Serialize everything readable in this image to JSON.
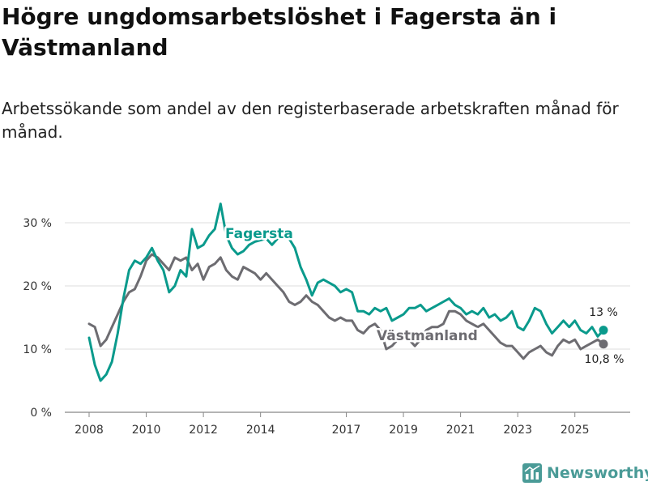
{
  "header": {
    "title": "Högre ungdomsarbetslöshet i Fagersta än i Västmanland",
    "subtitle": "Arbetssökande som andel av den registerbaserade arbetskraften månad för månad."
  },
  "brand": {
    "name": "Newsworthy",
    "color": "#4a9b97"
  },
  "colors": {
    "fagersta": "#0a9a8c",
    "vastmanland": "#6d6c71",
    "grid": "#dcdcdc",
    "axis": "#888888"
  },
  "chart_data": {
    "type": "line",
    "title": "Högre ungdomsarbetslöshet i Fagersta än i Västmanland",
    "xlabel": "",
    "ylabel": "",
    "xlim": [
      2008,
      2026.5
    ],
    "ylim": [
      0,
      30
    ],
    "x_ticks": [
      {
        "value": 2008,
        "label": "2008"
      },
      {
        "value": 2010,
        "label": "2010"
      },
      {
        "value": 2012,
        "label": "2012"
      },
      {
        "value": 2014,
        "label": "2014"
      },
      {
        "value": 2017,
        "label": "2017"
      },
      {
        "value": 2019,
        "label": "2019"
      },
      {
        "value": 2021,
        "label": "2021"
      },
      {
        "value": 2023,
        "label": "2023"
      },
      {
        "value": 2025,
        "label": "2025"
      }
    ],
    "y_ticks": [
      {
        "value": 0,
        "label": "0 %"
      },
      {
        "value": 10,
        "label": "10 %"
      },
      {
        "value": 20,
        "label": "20 %"
      },
      {
        "value": 30,
        "label": "30 %"
      }
    ],
    "grid": true,
    "series": [
      {
        "name": "Fagersta",
        "color": "#0a9a8c",
        "label": "Fagersta",
        "end_label": "13 %",
        "points": [
          [
            2008.0,
            11.8
          ],
          [
            2008.2,
            7.5
          ],
          [
            2008.4,
            5.0
          ],
          [
            2008.6,
            6.0
          ],
          [
            2008.8,
            8.0
          ],
          [
            2009.0,
            12.5
          ],
          [
            2009.2,
            18.0
          ],
          [
            2009.4,
            22.5
          ],
          [
            2009.6,
            24.0
          ],
          [
            2009.8,
            23.5
          ],
          [
            2010.0,
            24.5
          ],
          [
            2010.2,
            26.0
          ],
          [
            2010.4,
            24.0
          ],
          [
            2010.6,
            22.5
          ],
          [
            2010.8,
            19.0
          ],
          [
            2011.0,
            20.0
          ],
          [
            2011.2,
            22.5
          ],
          [
            2011.4,
            21.5
          ],
          [
            2011.6,
            29.0
          ],
          [
            2011.8,
            26.0
          ],
          [
            2012.0,
            26.5
          ],
          [
            2012.2,
            28.0
          ],
          [
            2012.4,
            29.0
          ],
          [
            2012.6,
            33.0
          ],
          [
            2012.8,
            28.0
          ],
          [
            2013.0,
            26.0
          ],
          [
            2013.2,
            25.0
          ],
          [
            2013.4,
            25.5
          ],
          [
            2013.6,
            26.5
          ],
          [
            2013.8,
            27.0
          ],
          [
            2014.2,
            27.5
          ],
          [
            2014.4,
            26.5
          ],
          [
            2014.6,
            27.5
          ],
          [
            2015.0,
            27.5
          ],
          [
            2015.2,
            26.0
          ],
          [
            2015.4,
            23.0
          ],
          [
            2015.6,
            21.0
          ],
          [
            2015.8,
            18.5
          ],
          [
            2016.0,
            20.5
          ],
          [
            2016.2,
            21.0
          ],
          [
            2016.4,
            20.5
          ],
          [
            2016.6,
            20.0
          ],
          [
            2016.8,
            19.0
          ],
          [
            2017.0,
            19.5
          ],
          [
            2017.2,
            19.0
          ],
          [
            2017.4,
            16.0
          ],
          [
            2017.6,
            16.0
          ],
          [
            2017.8,
            15.5
          ],
          [
            2018.0,
            16.5
          ],
          [
            2018.2,
            16.0
          ],
          [
            2018.4,
            16.5
          ],
          [
            2018.6,
            14.5
          ],
          [
            2018.8,
            15.0
          ],
          [
            2019.0,
            15.5
          ],
          [
            2019.2,
            16.5
          ],
          [
            2019.4,
            16.5
          ],
          [
            2019.6,
            17.0
          ],
          [
            2019.8,
            16.0
          ],
          [
            2020.0,
            16.5
          ],
          [
            2020.2,
            17.0
          ],
          [
            2020.4,
            17.5
          ],
          [
            2020.6,
            18.0
          ],
          [
            2020.8,
            17.0
          ],
          [
            2021.0,
            16.5
          ],
          [
            2021.2,
            15.5
          ],
          [
            2021.4,
            16.0
          ],
          [
            2021.6,
            15.5
          ],
          [
            2021.8,
            16.5
          ],
          [
            2022.0,
            15.0
          ],
          [
            2022.2,
            15.5
          ],
          [
            2022.4,
            14.5
          ],
          [
            2022.6,
            15.0
          ],
          [
            2022.8,
            16.0
          ],
          [
            2023.0,
            13.5
          ],
          [
            2023.2,
            13.0
          ],
          [
            2023.4,
            14.5
          ],
          [
            2023.6,
            16.5
          ],
          [
            2023.8,
            16.0
          ],
          [
            2024.0,
            14.0
          ],
          [
            2024.2,
            12.5
          ],
          [
            2024.4,
            13.5
          ],
          [
            2024.6,
            14.5
          ],
          [
            2024.8,
            13.5
          ],
          [
            2025.0,
            14.5
          ],
          [
            2025.2,
            13.0
          ],
          [
            2025.4,
            12.5
          ],
          [
            2025.6,
            13.5
          ],
          [
            2025.8,
            12.0
          ],
          [
            2026.0,
            13.0
          ]
        ]
      },
      {
        "name": "Västmanland",
        "color": "#6d6c71",
        "label": "Västmanland",
        "end_label": "10,8 %",
        "points": [
          [
            2008.0,
            14.0
          ],
          [
            2008.2,
            13.5
          ],
          [
            2008.4,
            10.5
          ],
          [
            2008.6,
            11.5
          ],
          [
            2008.8,
            13.5
          ],
          [
            2009.0,
            15.5
          ],
          [
            2009.2,
            17.5
          ],
          [
            2009.4,
            19.0
          ],
          [
            2009.6,
            19.5
          ],
          [
            2009.8,
            21.5
          ],
          [
            2010.0,
            24.0
          ],
          [
            2010.2,
            25.0
          ],
          [
            2010.4,
            24.5
          ],
          [
            2010.6,
            23.5
          ],
          [
            2010.8,
            22.5
          ],
          [
            2011.0,
            24.5
          ],
          [
            2011.2,
            24.0
          ],
          [
            2011.4,
            24.5
          ],
          [
            2011.6,
            22.5
          ],
          [
            2011.8,
            23.5
          ],
          [
            2012.0,
            21.0
          ],
          [
            2012.2,
            23.0
          ],
          [
            2012.4,
            23.5
          ],
          [
            2012.6,
            24.5
          ],
          [
            2012.8,
            22.5
          ],
          [
            2013.0,
            21.5
          ],
          [
            2013.2,
            21.0
          ],
          [
            2013.4,
            23.0
          ],
          [
            2013.6,
            22.5
          ],
          [
            2013.8,
            22.0
          ],
          [
            2014.0,
            21.0
          ],
          [
            2014.2,
            22.0
          ],
          [
            2014.4,
            21.0
          ],
          [
            2014.6,
            20.0
          ],
          [
            2014.8,
            19.0
          ],
          [
            2015.0,
            17.5
          ],
          [
            2015.2,
            17.0
          ],
          [
            2015.4,
            17.5
          ],
          [
            2015.6,
            18.5
          ],
          [
            2015.8,
            17.5
          ],
          [
            2016.0,
            17.0
          ],
          [
            2016.2,
            16.0
          ],
          [
            2016.4,
            15.0
          ],
          [
            2016.6,
            14.5
          ],
          [
            2016.8,
            15.0
          ],
          [
            2017.0,
            14.5
          ],
          [
            2017.2,
            14.5
          ],
          [
            2017.4,
            13.0
          ],
          [
            2017.6,
            12.5
          ],
          [
            2017.8,
            13.5
          ],
          [
            2018.0,
            14.0
          ],
          [
            2018.2,
            13.0
          ],
          [
            2018.4,
            10.0
          ],
          [
            2018.6,
            10.5
          ],
          [
            2018.8,
            11.5
          ],
          [
            2019.0,
            12.0
          ],
          [
            2019.2,
            11.5
          ],
          [
            2019.4,
            10.5
          ],
          [
            2019.6,
            11.5
          ],
          [
            2019.8,
            13.0
          ],
          [
            2020.0,
            13.5
          ],
          [
            2020.2,
            13.5
          ],
          [
            2020.4,
            14.0
          ],
          [
            2020.6,
            16.0
          ],
          [
            2020.8,
            16.0
          ],
          [
            2021.0,
            15.5
          ],
          [
            2021.2,
            14.5
          ],
          [
            2021.4,
            14.0
          ],
          [
            2021.6,
            13.5
          ],
          [
            2021.8,
            14.0
          ],
          [
            2022.0,
            13.0
          ],
          [
            2022.2,
            12.0
          ],
          [
            2022.4,
            11.0
          ],
          [
            2022.6,
            10.5
          ],
          [
            2022.8,
            10.5
          ],
          [
            2023.0,
            9.5
          ],
          [
            2023.2,
            8.5
          ],
          [
            2023.4,
            9.5
          ],
          [
            2023.6,
            10.0
          ],
          [
            2023.8,
            10.5
          ],
          [
            2024.0,
            9.5
          ],
          [
            2024.2,
            9.0
          ],
          [
            2024.4,
            10.5
          ],
          [
            2024.6,
            11.5
          ],
          [
            2024.8,
            11.0
          ],
          [
            2025.0,
            11.5
          ],
          [
            2025.2,
            10.0
          ],
          [
            2025.4,
            10.5
          ],
          [
            2025.6,
            11.0
          ],
          [
            2025.8,
            11.5
          ],
          [
            2026.0,
            10.8
          ]
        ]
      }
    ]
  }
}
